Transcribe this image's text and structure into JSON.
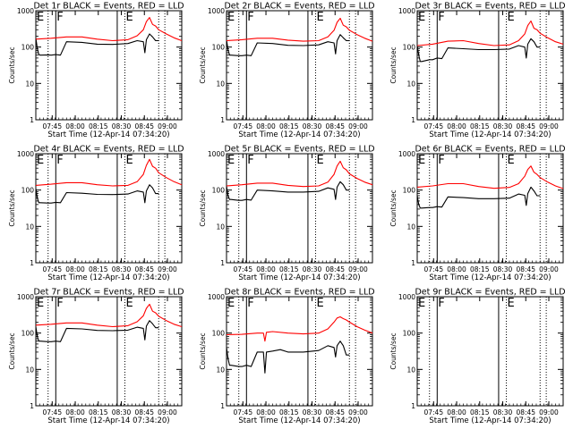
{
  "x_tick_labels": [
    "07:45",
    "08:00",
    "08:15",
    "08:30",
    "08:45",
    "09:00"
  ],
  "y_tick_labels": [
    "1",
    "10",
    "100",
    "1000"
  ],
  "xlabel": "Start Time (12-Apr-14 07:34:20)",
  "ylabel": "Counts/sec",
  "flags": {
    "eclipse_start": "E",
    "flare_start": "F",
    "eclipse_end": "E"
  },
  "colors": {
    "events": "#000000",
    "lld": "#ff0000",
    "axis": "#000000"
  },
  "chart_data": [
    {
      "type": "line",
      "title": "Det 1r BLACK = Events, RED = LLD",
      "x_unit": "minutes after 07:34:20",
      "xlim": [
        0,
        95
      ],
      "ylim": [
        1,
        1000
      ],
      "yscale": "log",
      "vlines_solid": [
        13,
        53
      ],
      "vlines_dotted": [
        8,
        58,
        80,
        84
      ],
      "series": [
        {
          "name": "Events",
          "color": "#000000",
          "x": [
            0,
            1,
            2,
            3,
            8,
            10,
            13,
            16,
            20,
            30,
            40,
            50,
            60,
            66,
            70,
            71,
            72,
            74,
            76,
            78,
            80
          ],
          "values": [
            180,
            90,
            62,
            60,
            61,
            60,
            62,
            60,
            140,
            135,
            120,
            118,
            125,
            150,
            140,
            70,
            160,
            230,
            190,
            150,
            150
          ]
        },
        {
          "name": "LLD",
          "color": "#ff0000",
          "x": [
            0,
            10,
            20,
            30,
            40,
            50,
            60,
            66,
            70,
            72,
            74,
            76,
            78,
            80,
            85,
            90,
            95
          ],
          "values": [
            165,
            175,
            190,
            190,
            165,
            150,
            160,
            205,
            300,
            500,
            650,
            420,
            380,
            300,
            230,
            180,
            150
          ]
        }
      ]
    },
    {
      "type": "line",
      "title": "Det 2r BLACK = Events, RED = LLD",
      "x_unit": "minutes after 07:34:20",
      "xlim": [
        0,
        95
      ],
      "ylim": [
        1,
        1000
      ],
      "yscale": "log",
      "vlines_solid": [
        13,
        53
      ],
      "vlines_dotted": [
        8,
        58,
        80,
        84
      ],
      "series": [
        {
          "name": "Events",
          "color": "#000000",
          "x": [
            0,
            1,
            2,
            3,
            8,
            10,
            13,
            16,
            20,
            30,
            40,
            50,
            60,
            66,
            70,
            71,
            72,
            74,
            76,
            78,
            80
          ],
          "values": [
            160,
            85,
            60,
            60,
            58,
            58,
            60,
            58,
            130,
            125,
            112,
            110,
            115,
            140,
            130,
            65,
            150,
            220,
            180,
            150,
            150
          ]
        },
        {
          "name": "LLD",
          "color": "#ff0000",
          "x": [
            0,
            10,
            20,
            30,
            40,
            50,
            60,
            66,
            70,
            72,
            74,
            76,
            78,
            80,
            85,
            90,
            95
          ],
          "values": [
            150,
            160,
            175,
            175,
            155,
            145,
            150,
            190,
            290,
            480,
            620,
            400,
            360,
            290,
            220,
            175,
            145
          ]
        }
      ]
    },
    {
      "type": "line",
      "title": "Det 3r BLACK = Events, RED = LLD",
      "x_unit": "minutes after 07:34:20",
      "xlim": [
        0,
        95
      ],
      "ylim": [
        1,
        1000
      ],
      "yscale": "log",
      "vlines_solid": [
        13,
        53
      ],
      "vlines_dotted": [
        8,
        58,
        80,
        84
      ],
      "series": [
        {
          "name": "Events",
          "color": "#000000",
          "x": [
            0,
            1,
            2,
            3,
            8,
            10,
            13,
            16,
            20,
            30,
            40,
            50,
            60,
            66,
            70,
            71,
            72,
            74,
            76,
            78,
            80
          ],
          "values": [
            110,
            60,
            40,
            40,
            45,
            45,
            50,
            48,
            95,
            90,
            85,
            85,
            88,
            110,
            100,
            50,
            120,
            170,
            140,
            100,
            100
          ]
        },
        {
          "name": "LLD",
          "color": "#ff0000",
          "x": [
            0,
            10,
            20,
            30,
            40,
            50,
            60,
            66,
            70,
            72,
            74,
            76,
            78,
            80,
            85,
            90,
            95
          ],
          "values": [
            110,
            120,
            145,
            150,
            125,
            110,
            115,
            150,
            230,
            390,
            520,
            330,
            300,
            240,
            180,
            140,
            120
          ]
        }
      ]
    },
    {
      "type": "line",
      "title": "Det 4r BLACK = Events, RED = LLD",
      "x_unit": "minutes after 07:34:20",
      "xlim": [
        0,
        95
      ],
      "ylim": [
        1,
        1000
      ],
      "yscale": "log",
      "vlines_solid": [
        13,
        53
      ],
      "vlines_dotted": [
        8,
        58,
        80,
        84
      ],
      "series": [
        {
          "name": "Events",
          "color": "#000000",
          "x": [
            0,
            1,
            2,
            3,
            8,
            10,
            13,
            16,
            20,
            30,
            40,
            50,
            60,
            66,
            70,
            71,
            72,
            74,
            76,
            78,
            80
          ],
          "values": [
            110,
            60,
            45,
            45,
            44,
            44,
            46,
            45,
            85,
            82,
            76,
            75,
            78,
            95,
            88,
            45,
            95,
            140,
            115,
            80,
            80
          ]
        },
        {
          "name": "LLD",
          "color": "#ff0000",
          "x": [
            0,
            10,
            20,
            30,
            40,
            50,
            60,
            66,
            70,
            72,
            74,
            76,
            78,
            80,
            85,
            90,
            95
          ],
          "values": [
            135,
            145,
            160,
            160,
            140,
            130,
            135,
            170,
            270,
            480,
            700,
            450,
            400,
            300,
            220,
            170,
            140
          ]
        }
      ]
    },
    {
      "type": "line",
      "title": "Det 5r BLACK = Events, RED = LLD",
      "x_unit": "minutes after 07:34:20",
      "xlim": [
        0,
        95
      ],
      "ylim": [
        1,
        1000
      ],
      "yscale": "log",
      "vlines_solid": [
        13,
        53
      ],
      "vlines_dotted": [
        8,
        58,
        80,
        84
      ],
      "series": [
        {
          "name": "Events",
          "color": "#000000",
          "x": [
            0,
            1,
            2,
            3,
            8,
            10,
            13,
            16,
            20,
            30,
            40,
            50,
            60,
            66,
            70,
            71,
            72,
            74,
            76,
            78,
            80
          ],
          "values": [
            130,
            70,
            55,
            55,
            52,
            52,
            55,
            53,
            100,
            95,
            88,
            88,
            92,
            115,
            105,
            55,
            120,
            170,
            140,
            100,
            100
          ]
        },
        {
          "name": "LLD",
          "color": "#ff0000",
          "x": [
            0,
            10,
            20,
            30,
            40,
            50,
            60,
            66,
            70,
            72,
            74,
            76,
            78,
            80,
            85,
            90,
            95
          ],
          "values": [
            130,
            140,
            155,
            155,
            135,
            125,
            130,
            165,
            270,
            460,
            620,
            410,
            360,
            280,
            210,
            165,
            140
          ]
        }
      ]
    },
    {
      "type": "line",
      "title": "Det 6r BLACK = Events, RED = LLD",
      "x_unit": "minutes after 07:34:20",
      "xlim": [
        0,
        95
      ],
      "ylim": [
        1,
        1000
      ],
      "yscale": "log",
      "vlines_solid": [
        13,
        53
      ],
      "vlines_dotted": [
        8,
        58,
        80,
        84
      ],
      "series": [
        {
          "name": "Events",
          "color": "#000000",
          "x": [
            0,
            1,
            2,
            3,
            8,
            10,
            13,
            16,
            20,
            30,
            40,
            50,
            60,
            66,
            70,
            71,
            72,
            74,
            76,
            78,
            80
          ],
          "values": [
            70,
            40,
            32,
            32,
            33,
            33,
            35,
            34,
            65,
            62,
            58,
            58,
            60,
            78,
            72,
            38,
            80,
            120,
            95,
            70,
            70
          ]
        },
        {
          "name": "LLD",
          "color": "#ff0000",
          "x": [
            0,
            10,
            20,
            30,
            40,
            50,
            60,
            66,
            70,
            72,
            74,
            76,
            78,
            80,
            85,
            90,
            95
          ],
          "values": [
            120,
            130,
            150,
            150,
            125,
            112,
            118,
            150,
            240,
            370,
            460,
            310,
            270,
            220,
            165,
            130,
            110
          ]
        }
      ]
    },
    {
      "type": "line",
      "title": "Det 7r BLACK = Events, RED = LLD",
      "x_unit": "minutes after 07:34:20",
      "xlim": [
        0,
        95
      ],
      "ylim": [
        1,
        1000
      ],
      "yscale": "log",
      "vlines_solid": [
        13,
        53
      ],
      "vlines_dotted": [
        8,
        58,
        80,
        84
      ],
      "series": [
        {
          "name": "Events",
          "color": "#000000",
          "x": [
            0,
            1,
            2,
            3,
            8,
            10,
            13,
            16,
            20,
            30,
            40,
            50,
            60,
            66,
            70,
            71,
            72,
            74,
            76,
            78,
            80
          ],
          "values": [
            150,
            80,
            60,
            60,
            58,
            58,
            60,
            58,
            135,
            130,
            118,
            116,
            120,
            145,
            135,
            65,
            155,
            220,
            180,
            140,
            140
          ]
        },
        {
          "name": "LLD",
          "color": "#ff0000",
          "x": [
            0,
            10,
            20,
            30,
            40,
            50,
            60,
            66,
            70,
            72,
            74,
            76,
            78,
            80,
            85,
            90,
            95
          ],
          "values": [
            165,
            175,
            190,
            190,
            165,
            150,
            160,
            205,
            300,
            480,
            620,
            400,
            360,
            290,
            220,
            175,
            150
          ]
        }
      ]
    },
    {
      "type": "line",
      "title": "Det 8r BLACK = Events, RED = LLD",
      "x_unit": "minutes after 07:34:20",
      "xlim": [
        0,
        95
      ],
      "ylim": [
        1,
        1000
      ],
      "yscale": "log",
      "vlines_solid": [
        13,
        53
      ],
      "vlines_dotted": [
        8,
        58,
        80,
        84
      ],
      "series": [
        {
          "name": "Events",
          "color": "#000000",
          "x": [
            0,
            1,
            2,
            3,
            8,
            10,
            13,
            16,
            20,
            24,
            25,
            26,
            30,
            35,
            40,
            50,
            60,
            66,
            70,
            71,
            72,
            74,
            76,
            78,
            80
          ],
          "values": [
            40,
            20,
            13,
            13,
            12,
            12,
            13,
            12,
            30,
            30,
            8,
            30,
            32,
            35,
            30,
            30,
            33,
            45,
            40,
            22,
            45,
            60,
            45,
            25,
            25
          ]
        },
        {
          "name": "LLD",
          "color": "#ff0000",
          "x": [
            0,
            10,
            20,
            24,
            25,
            26,
            30,
            40,
            50,
            60,
            66,
            70,
            72,
            74,
            76,
            78,
            80,
            85,
            90,
            95
          ],
          "values": [
            90,
            92,
            100,
            100,
            60,
            105,
            110,
            100,
            95,
            100,
            130,
            200,
            260,
            280,
            250,
            230,
            200,
            150,
            120,
            100
          ]
        }
      ]
    },
    {
      "type": "line",
      "title": "Det 9r BLACK = Events, RED = LLD",
      "x_unit": "minutes after 07:34:20",
      "xlim": [
        0,
        95
      ],
      "ylim": [
        1,
        1000
      ],
      "yscale": "log",
      "vlines_solid": [
        13,
        53
      ],
      "vlines_dotted": [
        8,
        58,
        80,
        84
      ],
      "series": []
    }
  ]
}
